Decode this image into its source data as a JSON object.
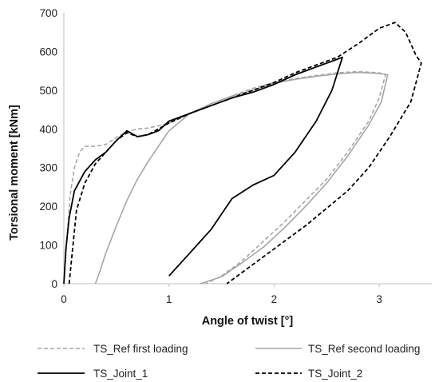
{
  "chart_data": {
    "type": "line",
    "xlabel": "Angle of twist [°]",
    "ylabel": "Torsional moment [kNm]",
    "xlim": [
      0,
      3.5
    ],
    "ylim": [
      0,
      700
    ],
    "xticks": [
      0,
      1,
      2,
      3
    ],
    "yticks": [
      0,
      100,
      200,
      300,
      400,
      500,
      600,
      700
    ],
    "grid": false,
    "legend_position": "bottom",
    "series": [
      {
        "name": "TS_Ref first loading",
        "color": "#a6a6a6",
        "dash": "dashed",
        "points": [
          [
            0.0,
            0
          ],
          [
            0.03,
            120
          ],
          [
            0.06,
            230
          ],
          [
            0.1,
            300
          ],
          [
            0.15,
            340
          ],
          [
            0.2,
            355
          ],
          [
            0.3,
            355
          ],
          [
            0.4,
            360
          ],
          [
            0.5,
            378
          ],
          [
            0.6,
            392
          ],
          [
            0.7,
            400
          ],
          [
            0.8,
            402
          ],
          [
            0.9,
            408
          ],
          [
            1.0,
            415
          ],
          [
            1.2,
            440
          ],
          [
            1.4,
            465
          ],
          [
            1.6,
            485
          ],
          [
            1.8,
            505
          ],
          [
            2.0,
            520
          ],
          [
            2.2,
            530
          ],
          [
            2.4,
            538
          ],
          [
            2.6,
            545
          ],
          [
            2.8,
            548
          ],
          [
            3.0,
            545
          ],
          [
            3.06,
            540
          ],
          [
            3.0,
            480
          ],
          [
            2.9,
            420
          ],
          [
            2.7,
            340
          ],
          [
            2.5,
            270
          ],
          [
            2.3,
            215
          ],
          [
            2.1,
            160
          ],
          [
            1.9,
            110
          ],
          [
            1.7,
            60
          ],
          [
            1.5,
            20
          ],
          [
            1.35,
            0
          ]
        ]
      },
      {
        "name": "TS_Ref second loading",
        "color": "#a6a6a6",
        "dash": "solid",
        "points": [
          [
            0.3,
            0
          ],
          [
            0.34,
            30
          ],
          [
            0.4,
            80
          ],
          [
            0.5,
            150
          ],
          [
            0.6,
            215
          ],
          [
            0.7,
            270
          ],
          [
            0.8,
            315
          ],
          [
            0.9,
            355
          ],
          [
            0.95,
            375
          ],
          [
            1.0,
            395
          ],
          [
            1.2,
            440
          ],
          [
            1.4,
            465
          ],
          [
            1.6,
            485
          ],
          [
            1.8,
            500
          ],
          [
            2.0,
            518
          ],
          [
            2.2,
            528
          ],
          [
            2.4,
            536
          ],
          [
            2.6,
            542
          ],
          [
            2.8,
            546
          ],
          [
            3.0,
            543
          ],
          [
            3.08,
            540
          ],
          [
            3.02,
            470
          ],
          [
            2.9,
            410
          ],
          [
            2.7,
            330
          ],
          [
            2.5,
            260
          ],
          [
            2.3,
            200
          ],
          [
            2.1,
            145
          ],
          [
            1.9,
            95
          ],
          [
            1.7,
            55
          ],
          [
            1.5,
            18
          ],
          [
            1.3,
            0
          ]
        ]
      },
      {
        "name": "TS_Joint_1",
        "color": "#000000",
        "dash": "solid",
        "points": [
          [
            0.0,
            0
          ],
          [
            0.02,
            90
          ],
          [
            0.05,
            170
          ],
          [
            0.1,
            240
          ],
          [
            0.2,
            290
          ],
          [
            0.3,
            320
          ],
          [
            0.4,
            340
          ],
          [
            0.5,
            370
          ],
          [
            0.6,
            395
          ],
          [
            0.7,
            380
          ],
          [
            0.8,
            385
          ],
          [
            0.9,
            395
          ],
          [
            1.0,
            420
          ],
          [
            1.2,
            440
          ],
          [
            1.4,
            460
          ],
          [
            1.6,
            480
          ],
          [
            1.8,
            495
          ],
          [
            2.0,
            515
          ],
          [
            2.2,
            540
          ],
          [
            2.4,
            560
          ],
          [
            2.6,
            580
          ],
          [
            2.65,
            585
          ],
          [
            2.55,
            500
          ],
          [
            2.4,
            420
          ],
          [
            2.2,
            340
          ],
          [
            2.0,
            280
          ],
          [
            1.8,
            255
          ],
          [
            1.6,
            220
          ],
          [
            1.4,
            140
          ],
          [
            1.2,
            80
          ],
          [
            1.0,
            20
          ]
        ]
      },
      {
        "name": "TS_Joint_2",
        "color": "#000000",
        "dash": "dashed",
        "points": [
          [
            0.05,
            0
          ],
          [
            0.08,
            80
          ],
          [
            0.12,
            190
          ],
          [
            0.2,
            260
          ],
          [
            0.3,
            310
          ],
          [
            0.4,
            340
          ],
          [
            0.5,
            370
          ],
          [
            0.6,
            390
          ],
          [
            0.7,
            380
          ],
          [
            0.8,
            385
          ],
          [
            0.9,
            400
          ],
          [
            1.0,
            415
          ],
          [
            1.2,
            440
          ],
          [
            1.4,
            460
          ],
          [
            1.6,
            480
          ],
          [
            1.8,
            500
          ],
          [
            2.0,
            520
          ],
          [
            2.2,
            545
          ],
          [
            2.4,
            565
          ],
          [
            2.6,
            585
          ],
          [
            2.8,
            620
          ],
          [
            3.0,
            660
          ],
          [
            3.15,
            675
          ],
          [
            3.25,
            650
          ],
          [
            3.35,
            590
          ],
          [
            3.4,
            570
          ],
          [
            3.3,
            470
          ],
          [
            3.1,
            380
          ],
          [
            2.9,
            300
          ],
          [
            2.7,
            240
          ],
          [
            2.5,
            195
          ],
          [
            2.3,
            150
          ],
          [
            2.1,
            110
          ],
          [
            1.9,
            70
          ],
          [
            1.7,
            30
          ],
          [
            1.55,
            0
          ]
        ]
      }
    ]
  }
}
